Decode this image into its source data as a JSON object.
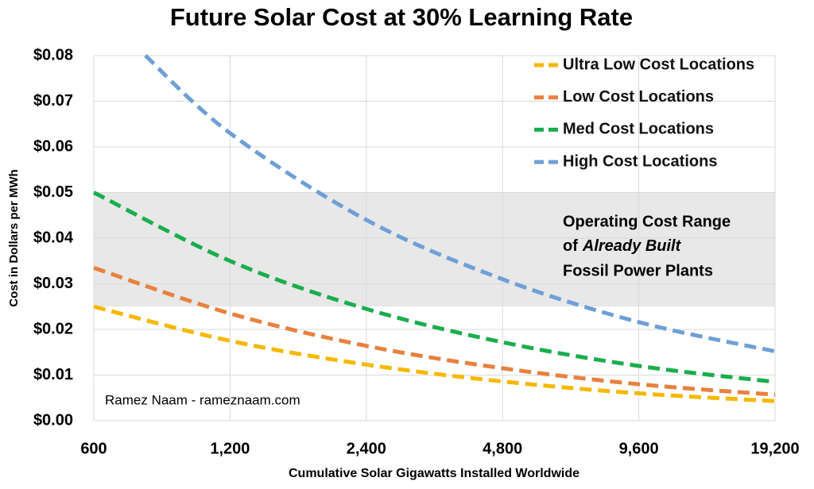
{
  "chart_data": {
    "type": "line",
    "title": "Future Solar Cost at 30% Learning Rate",
    "x_label": "Cumulative Solar Gigawatts Installed Worldwide",
    "y_label": "Cost in Dollars per MWh",
    "x": [
      600,
      1200,
      2400,
      4800,
      9600,
      19200
    ],
    "xlim": [
      600,
      19200
    ],
    "log_x": true,
    "xticks": [
      600,
      {
        "value": 1200,
        "label": "1,200"
      },
      {
        "value": 2400,
        "label": "2,400"
      },
      {
        "value": 4800,
        "label": "4,800"
      },
      {
        "value": 9600,
        "label": "9,600"
      },
      {
        "value": 19200,
        "label": "19,200"
      }
    ],
    "ylim": [
      0,
      0.08
    ],
    "yticks": [
      {
        "value": 0,
        "label": "$0.00"
      },
      {
        "value": 0.01,
        "label": "$0.01"
      },
      {
        "value": 0.02,
        "label": "$0.02"
      },
      {
        "value": 0.03,
        "label": "$0.03"
      },
      {
        "value": 0.04,
        "label": "$0.04"
      },
      {
        "value": 0.05,
        "label": "$0.05"
      },
      {
        "value": 0.06,
        "label": "$0.06"
      },
      {
        "value": 0.07,
        "label": "$0.07"
      },
      {
        "value": 0.08,
        "label": "$0.08"
      }
    ],
    "grid": true,
    "legend": "upper right",
    "series": [
      {
        "name": "Ultra Low Cost Locations",
        "color": "#f5b800",
        "values": [
          0.025,
          0.0175,
          0.0123,
          0.0086,
          0.006,
          0.0043
        ]
      },
      {
        "name": "Low Cost Locations",
        "color": "#e8813f",
        "values": [
          0.0335,
          0.0235,
          0.0164,
          0.0115,
          0.008,
          0.0057
        ]
      },
      {
        "name": "Med Cost Locations",
        "color": "#1aad4e",
        "values": [
          0.05,
          0.035,
          0.0245,
          0.0172,
          0.012,
          0.0085
        ]
      },
      {
        "name": "High Cost Locations",
        "color": "#6f9fd6",
        "x": [
          780,
          1200,
          2400,
          4800,
          9600,
          19200
        ],
        "values": [
          0.08,
          0.063,
          0.044,
          0.031,
          0.0216,
          0.0152
        ]
      }
    ],
    "band": {
      "range": [
        0.025,
        0.05
      ],
      "color": "#e8e8e8",
      "lines": [
        "Operating Cost Range",
        "of",
        "Already Built",
        "Fossil Power Plants"
      ]
    },
    "credit": "Ramez Naam - rameznaam.com"
  }
}
